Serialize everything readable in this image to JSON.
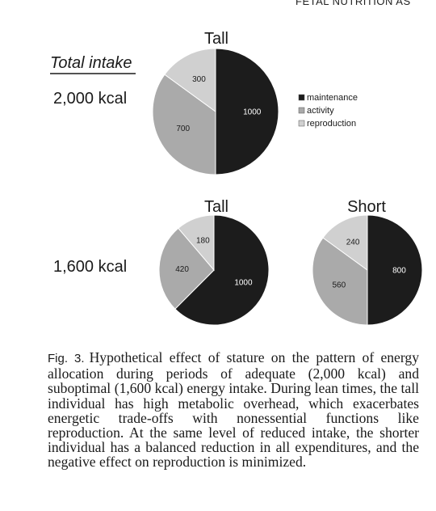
{
  "running_header": "FETAL NUTRITION AS",
  "figure": {
    "total_intake_label": "Total intake",
    "legend": [
      {
        "label": "maintenance",
        "color": "#1c1c1c"
      },
      {
        "label": "activity",
        "color": "#aaaaaa"
      },
      {
        "label": "reproduction",
        "color": "#d0d0d0"
      }
    ]
  },
  "chart_data": [
    {
      "type": "pie",
      "title": "Tall",
      "row_label": "2,000 kcal",
      "categories": [
        "maintenance",
        "activity",
        "reproduction"
      ],
      "values": [
        1000,
        700,
        300
      ]
    },
    {
      "type": "pie",
      "title": "Tall",
      "row_label": "1,600 kcal",
      "categories": [
        "maintenance",
        "activity",
        "reproduction"
      ],
      "values": [
        1000,
        420,
        180
      ]
    },
    {
      "type": "pie",
      "title": "Short",
      "row_label": "",
      "categories": [
        "maintenance",
        "activity",
        "reproduction"
      ],
      "values": [
        800,
        560,
        240
      ]
    }
  ],
  "caption": {
    "label": "Fig. 3.",
    "text": "Hypothetical effect of stature on the pattern of energy allocation during periods of adequate (2,000 kcal) and suboptimal (1,600 kcal) energy intake. During lean times, the tall individual has high metabolic overhead, which exacerbates energetic trade-offs with nonessential functions like reproduction. At the same level of reduced intake, the shorter individual has a balanced reduction in all expenditures, and the negative effect on reproduction is minimized."
  }
}
